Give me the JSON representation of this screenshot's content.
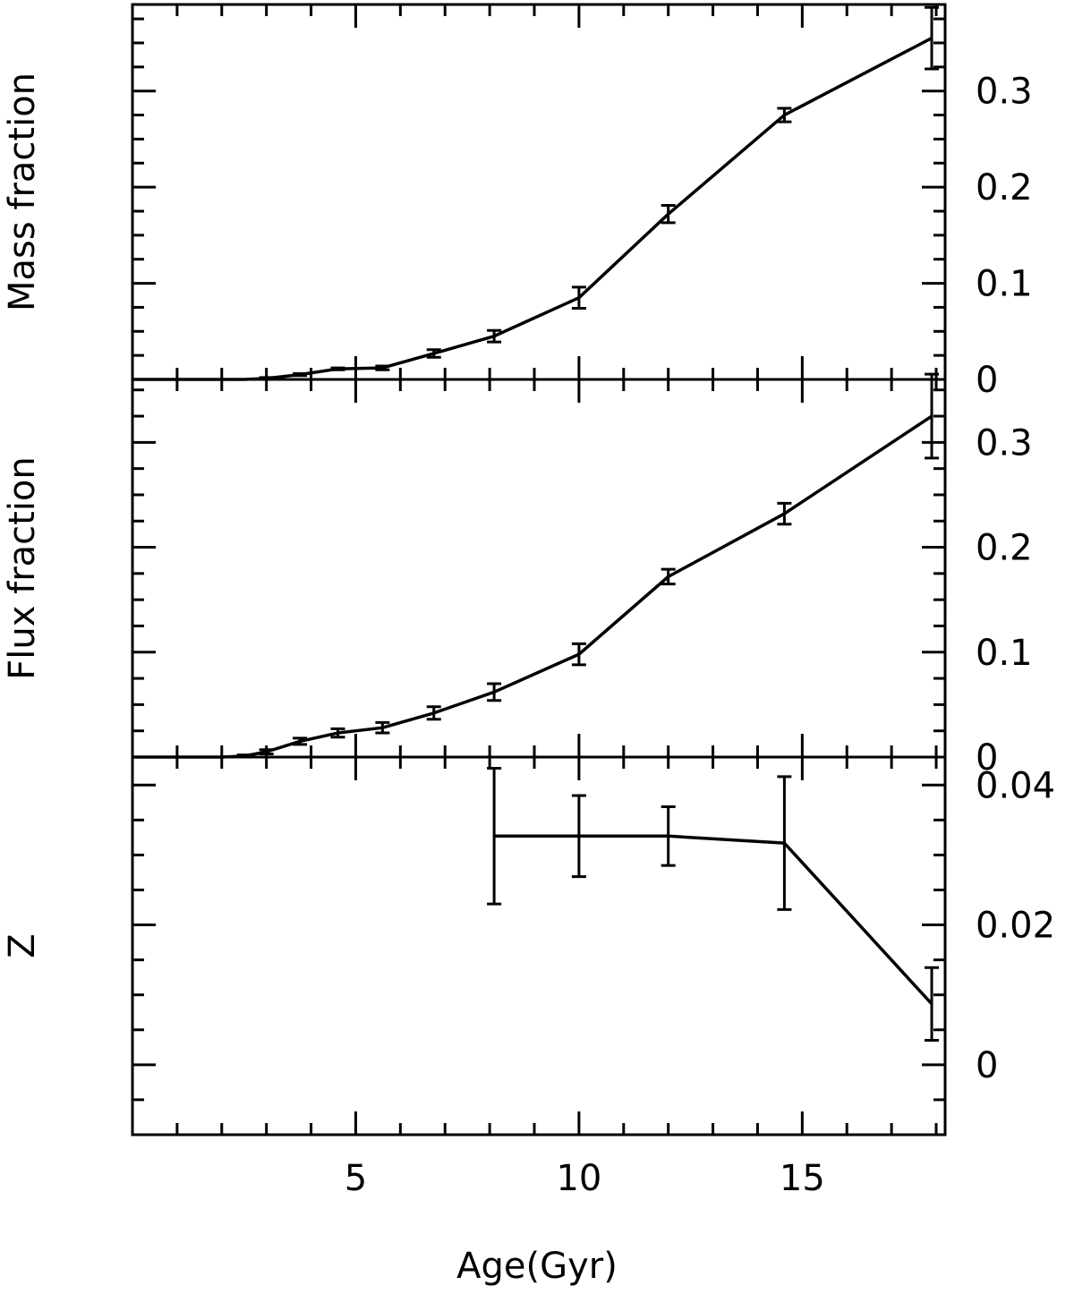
{
  "chart_data": [
    {
      "type": "line",
      "panel": "top",
      "ylabel": "Mass fraction",
      "xlim": [
        0,
        18.2
      ],
      "ylim": [
        0,
        0.39
      ],
      "yticks": [
        0,
        0.1,
        0.2,
        0.3
      ],
      "ytick_labels": [
        "0",
        "0.1",
        "0.2",
        "0.3"
      ],
      "y_axis_labels_side": "right",
      "series": [
        {
          "x": [
            2.5,
            3.0,
            3.75,
            4.6,
            5.6,
            6.75,
            8.1,
            10.0,
            12.0,
            14.6,
            17.9
          ],
          "y": [
            0.0,
            0.001,
            0.005,
            0.011,
            0.012,
            0.027,
            0.045,
            0.085,
            0.172,
            0.275,
            0.355
          ],
          "yerr": [
            0.0,
            0.001,
            0.001,
            0.001,
            0.002,
            0.004,
            0.006,
            0.011,
            0.009,
            0.007,
            0.032
          ],
          "line_from_x": 0
        }
      ]
    },
    {
      "type": "line",
      "panel": "middle",
      "ylabel": "Flux fraction",
      "xlim": [
        0,
        18.2
      ],
      "ylim": [
        0,
        0.36
      ],
      "yticks": [
        0,
        0.1,
        0.2,
        0.3
      ],
      "ytick_labels": [
        "0",
        "0.1",
        "0.2",
        "0.3"
      ],
      "y_axis_labels_side": "right",
      "series": [
        {
          "x": [
            2.0,
            2.5,
            3.0,
            3.75,
            4.6,
            5.6,
            6.75,
            8.1,
            10.0,
            12.0,
            14.6,
            17.9
          ],
          "y": [
            0.0,
            0.001,
            0.005,
            0.015,
            0.023,
            0.028,
            0.042,
            0.062,
            0.098,
            0.172,
            0.232,
            0.325
          ],
          "yerr": [
            0.0,
            0.001,
            0.002,
            0.003,
            0.004,
            0.005,
            0.006,
            0.008,
            0.01,
            0.007,
            0.01,
            0.04
          ],
          "line_from_x": 0
        }
      ]
    },
    {
      "type": "line",
      "panel": "bottom",
      "ylabel": "Z",
      "xlabel": "Age(Gyr)",
      "xlim": [
        0,
        18.2
      ],
      "xticks": [
        5,
        10,
        15
      ],
      "xtick_labels": [
        "5",
        "10",
        "15"
      ],
      "ylim": [
        -0.01,
        0.044
      ],
      "yticks": [
        0,
        0.02,
        0.04
      ],
      "ytick_labels": [
        "0",
        "0.02",
        "0.04"
      ],
      "y_axis_labels_side": "right",
      "series": [
        {
          "x": [
            8.1,
            10.0,
            12.0,
            14.6,
            17.9
          ],
          "y": [
            0.0327,
            0.0327,
            0.0327,
            0.0317,
            0.0087
          ],
          "yerr": [
            0.0097,
            0.0058,
            0.0042,
            0.0095,
            0.0052
          ]
        }
      ]
    }
  ]
}
